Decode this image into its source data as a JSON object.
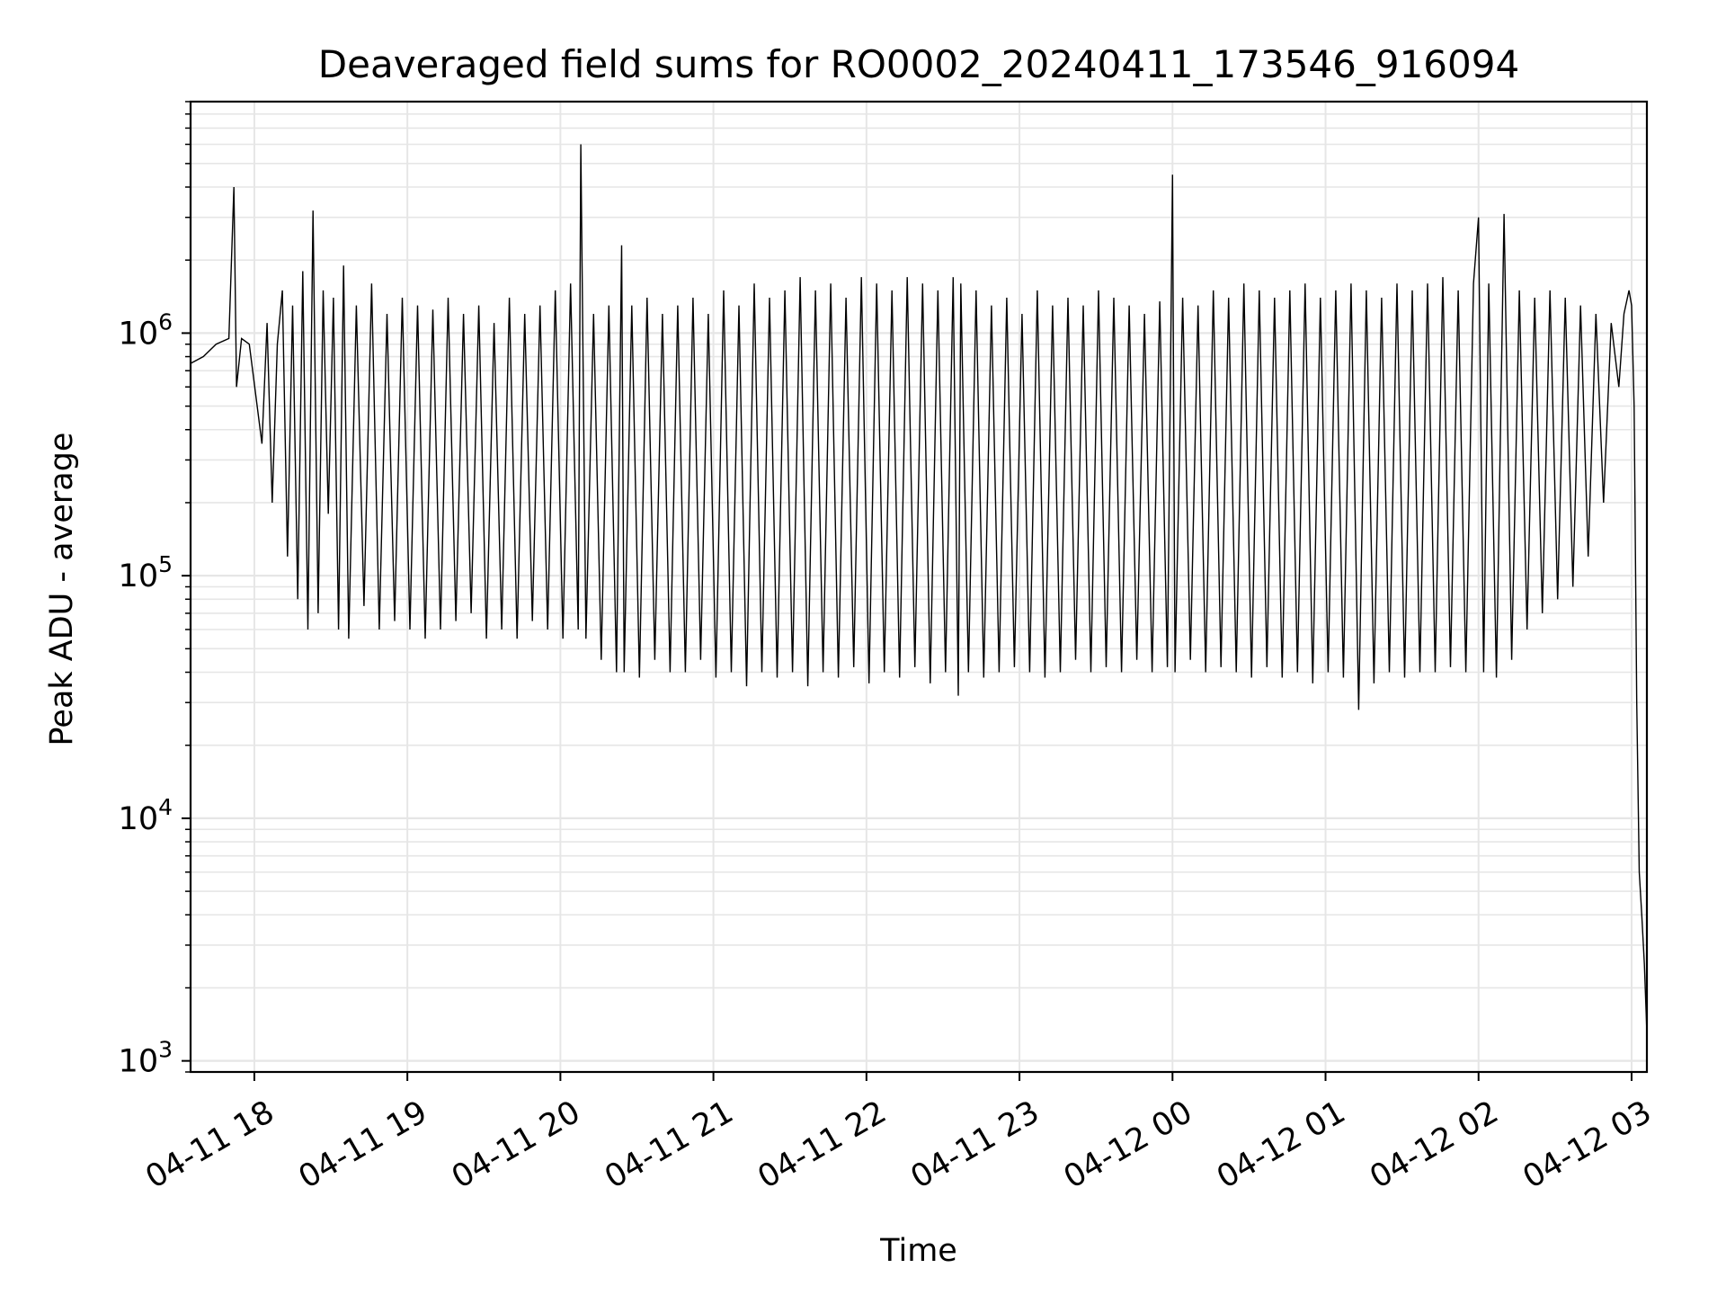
{
  "chart_data": {
    "type": "line",
    "title": "Deaveraged field sums for RO0002_20240411_173546_916094",
    "xlabel": "Time",
    "ylabel": "Peak ADU - average",
    "y_scale": "log",
    "grid": true,
    "line_color": "#000000",
    "xlim": [
      "2024-04-11 17:35",
      "2024-04-12 03:06"
    ],
    "ylim": [
      900,
      9000000
    ],
    "x_ticks": [
      {
        "time": "2024-04-11 18:00",
        "label": "04-11 18"
      },
      {
        "time": "2024-04-11 19:00",
        "label": "04-11 19"
      },
      {
        "time": "2024-04-11 20:00",
        "label": "04-11 20"
      },
      {
        "time": "2024-04-11 21:00",
        "label": "04-11 21"
      },
      {
        "time": "2024-04-11 22:00",
        "label": "04-11 22"
      },
      {
        "time": "2024-04-11 23:00",
        "label": "04-11 23"
      },
      {
        "time": "2024-04-12 00:00",
        "label": "04-12 00"
      },
      {
        "time": "2024-04-12 01:00",
        "label": "04-12 01"
      },
      {
        "time": "2024-04-12 02:00",
        "label": "04-12 02"
      },
      {
        "time": "2024-04-12 03:00",
        "label": "04-12 03"
      }
    ],
    "y_ticks": [
      {
        "value": 1000,
        "base": "10",
        "exponent": "3"
      },
      {
        "value": 10000,
        "base": "10",
        "exponent": "4"
      },
      {
        "value": 100000,
        "base": "10",
        "exponent": "5"
      },
      {
        "value": 1000000,
        "base": "10",
        "exponent": "6"
      }
    ],
    "series": [
      {
        "x": [
          "2024-04-11 17:35",
          "2024-04-11 17:40",
          "2024-04-11 17:45",
          "2024-04-11 17:50",
          "2024-04-11 17:52",
          "2024-04-11 17:53",
          "2024-04-11 17:55",
          "2024-04-11 17:58",
          "2024-04-11 18:03",
          "2024-04-11 18:05",
          "2024-04-11 18:07",
          "2024-04-11 18:09",
          "2024-04-11 18:11",
          "2024-04-11 18:13",
          "2024-04-11 18:15",
          "2024-04-11 18:17",
          "2024-04-11 18:19",
          "2024-04-11 18:21",
          "2024-04-11 18:23",
          "2024-04-11 18:25",
          "2024-04-11 18:27",
          "2024-04-11 18:29",
          "2024-04-11 18:31",
          "2024-04-11 18:33",
          "2024-04-11 18:35",
          "2024-04-11 18:37",
          "2024-04-11 18:40",
          "2024-04-11 18:43",
          "2024-04-11 18:46",
          "2024-04-11 18:49",
          "2024-04-11 18:52",
          "2024-04-11 18:55",
          "2024-04-11 18:58",
          "2024-04-11 19:01",
          "2024-04-11 19:04",
          "2024-04-11 19:07",
          "2024-04-11 19:10",
          "2024-04-11 19:13",
          "2024-04-11 19:16",
          "2024-04-11 19:19",
          "2024-04-11 19:22",
          "2024-04-11 19:25",
          "2024-04-11 19:28",
          "2024-04-11 19:31",
          "2024-04-11 19:34",
          "2024-04-11 19:37",
          "2024-04-11 19:40",
          "2024-04-11 19:43",
          "2024-04-11 19:46",
          "2024-04-11 19:49",
          "2024-04-11 19:52",
          "2024-04-11 19:55",
          "2024-04-11 19:58",
          "2024-04-11 20:01",
          "2024-04-11 20:04",
          "2024-04-11 20:07",
          "2024-04-11 20:08",
          "2024-04-11 20:10",
          "2024-04-11 20:13",
          "2024-04-11 20:16",
          "2024-04-11 20:19",
          "2024-04-11 20:22",
          "2024-04-11 20:24",
          "2024-04-11 20:25",
          "2024-04-11 20:28",
          "2024-04-11 20:31",
          "2024-04-11 20:34",
          "2024-04-11 20:37",
          "2024-04-11 20:40",
          "2024-04-11 20:43",
          "2024-04-11 20:46",
          "2024-04-11 20:49",
          "2024-04-11 20:52",
          "2024-04-11 20:55",
          "2024-04-11 20:58",
          "2024-04-11 21:01",
          "2024-04-11 21:04",
          "2024-04-11 21:07",
          "2024-04-11 21:10",
          "2024-04-11 21:13",
          "2024-04-11 21:16",
          "2024-04-11 21:19",
          "2024-04-11 21:22",
          "2024-04-11 21:25",
          "2024-04-11 21:28",
          "2024-04-11 21:31",
          "2024-04-11 21:34",
          "2024-04-11 21:37",
          "2024-04-11 21:40",
          "2024-04-11 21:43",
          "2024-04-11 21:46",
          "2024-04-11 21:49",
          "2024-04-11 21:52",
          "2024-04-11 21:55",
          "2024-04-11 21:58",
          "2024-04-11 22:01",
          "2024-04-11 22:04",
          "2024-04-11 22:07",
          "2024-04-11 22:10",
          "2024-04-11 22:13",
          "2024-04-11 22:16",
          "2024-04-11 22:19",
          "2024-04-11 22:22",
          "2024-04-11 22:25",
          "2024-04-11 22:28",
          "2024-04-11 22:31",
          "2024-04-11 22:34",
          "2024-04-11 22:36",
          "2024-04-11 22:37",
          "2024-04-11 22:40",
          "2024-04-11 22:43",
          "2024-04-11 22:46",
          "2024-04-11 22:49",
          "2024-04-11 22:52",
          "2024-04-11 22:55",
          "2024-04-11 22:58",
          "2024-04-11 23:01",
          "2024-04-11 23:04",
          "2024-04-11 23:07",
          "2024-04-11 23:10",
          "2024-04-11 23:13",
          "2024-04-11 23:16",
          "2024-04-11 23:19",
          "2024-04-11 23:22",
          "2024-04-11 23:25",
          "2024-04-11 23:28",
          "2024-04-11 23:31",
          "2024-04-11 23:34",
          "2024-04-11 23:37",
          "2024-04-11 23:40",
          "2024-04-11 23:43",
          "2024-04-11 23:46",
          "2024-04-11 23:49",
          "2024-04-11 23:52",
          "2024-04-11 23:55",
          "2024-04-11 23:58",
          "2024-04-12 00:00",
          "2024-04-12 00:01",
          "2024-04-12 00:04",
          "2024-04-12 00:07",
          "2024-04-12 00:10",
          "2024-04-12 00:13",
          "2024-04-12 00:16",
          "2024-04-12 00:19",
          "2024-04-12 00:22",
          "2024-04-12 00:25",
          "2024-04-12 00:28",
          "2024-04-12 00:31",
          "2024-04-12 00:34",
          "2024-04-12 00:37",
          "2024-04-12 00:40",
          "2024-04-12 00:43",
          "2024-04-12 00:46",
          "2024-04-12 00:49",
          "2024-04-12 00:52",
          "2024-04-12 00:55",
          "2024-04-12 00:58",
          "2024-04-12 01:01",
          "2024-04-12 01:04",
          "2024-04-12 01:07",
          "2024-04-12 01:10",
          "2024-04-12 01:13",
          "2024-04-12 01:16",
          "2024-04-12 01:19",
          "2024-04-12 01:22",
          "2024-04-12 01:25",
          "2024-04-12 01:28",
          "2024-04-12 01:31",
          "2024-04-12 01:34",
          "2024-04-12 01:37",
          "2024-04-12 01:40",
          "2024-04-12 01:43",
          "2024-04-12 01:46",
          "2024-04-12 01:49",
          "2024-04-12 01:52",
          "2024-04-12 01:55",
          "2024-04-12 01:58",
          "2024-04-12 02:00",
          "2024-04-12 02:02",
          "2024-04-12 02:04",
          "2024-04-12 02:07",
          "2024-04-12 02:10",
          "2024-04-12 02:13",
          "2024-04-12 02:16",
          "2024-04-12 02:19",
          "2024-04-12 02:22",
          "2024-04-12 02:25",
          "2024-04-12 02:28",
          "2024-04-12 02:31",
          "2024-04-12 02:34",
          "2024-04-12 02:37",
          "2024-04-12 02:40",
          "2024-04-12 02:43",
          "2024-04-12 02:46",
          "2024-04-12 02:49",
          "2024-04-12 02:52",
          "2024-04-12 02:55",
          "2024-04-12 02:57",
          "2024-04-12 02:59",
          "2024-04-12 03:00",
          "2024-04-12 03:01",
          "2024-04-12 03:02",
          "2024-04-12 03:03",
          "2024-04-12 03:04",
          "2024-04-12 03:05",
          "2024-04-12 03:06"
        ],
        "y": [
          750000,
          800000,
          900000,
          950000,
          4000000,
          600000,
          950000,
          900000,
          350000,
          1100000,
          200000,
          900000,
          1500000,
          120000,
          1300000,
          80000,
          1800000,
          60000,
          3200000,
          70000,
          1500000,
          180000,
          1400000,
          60000,
          1900000,
          55000,
          1300000,
          75000,
          1600000,
          60000,
          1200000,
          65000,
          1400000,
          60000,
          1300000,
          55000,
          1250000,
          60000,
          1400000,
          65000,
          1200000,
          70000,
          1300000,
          55000,
          1100000,
          60000,
          1400000,
          55000,
          1200000,
          65000,
          1300000,
          60000,
          1500000,
          55000,
          1600000,
          60000,
          6000000,
          55000,
          1200000,
          45000,
          1300000,
          40000,
          2300000,
          40000,
          1300000,
          38000,
          1400000,
          45000,
          1200000,
          40000,
          1300000,
          40000,
          1400000,
          45000,
          1200000,
          38000,
          1500000,
          40000,
          1300000,
          35000,
          1600000,
          40000,
          1400000,
          38000,
          1500000,
          40000,
          1700000,
          35000,
          1500000,
          40000,
          1600000,
          38000,
          1400000,
          42000,
          1700000,
          36000,
          1600000,
          40000,
          1500000,
          38000,
          1700000,
          42000,
          1600000,
          36000,
          1500000,
          40000,
          1700000,
          32000,
          1600000,
          40000,
          1500000,
          38000,
          1300000,
          40000,
          1400000,
          42000,
          1200000,
          40000,
          1500000,
          38000,
          1300000,
          40000,
          1400000,
          45000,
          1300000,
          40000,
          1500000,
          42000,
          1400000,
          40000,
          1300000,
          45000,
          1200000,
          40000,
          1350000,
          42000,
          4500000,
          40000,
          1400000,
          45000,
          1300000,
          40000,
          1500000,
          42000,
          1400000,
          40000,
          1600000,
          38000,
          1500000,
          42000,
          1400000,
          38000,
          1500000,
          40000,
          1600000,
          36000,
          1400000,
          40000,
          1500000,
          38000,
          1600000,
          28000,
          1500000,
          36000,
          1400000,
          40000,
          1600000,
          38000,
          1500000,
          40000,
          1600000,
          40000,
          1700000,
          42000,
          1500000,
          40000,
          1600000,
          3000000,
          40000,
          1600000,
          38000,
          3100000,
          45000,
          1500000,
          60000,
          1400000,
          70000,
          1500000,
          80000,
          1400000,
          90000,
          1300000,
          120000,
          1200000,
          200000,
          1100000,
          600000,
          1200000,
          1500000,
          1300000,
          500000,
          30000,
          6000,
          4000,
          2500,
          1300
        ]
      }
    ]
  }
}
